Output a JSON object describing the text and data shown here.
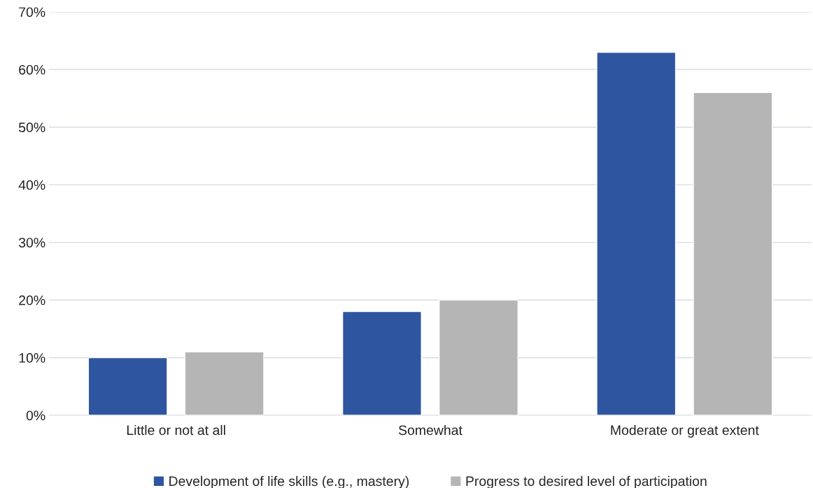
{
  "chart_data": {
    "type": "bar",
    "categories": [
      "Little or not at all",
      "Somewhat",
      "Moderate or great extent"
    ],
    "series": [
      {
        "name": "Development of life skills (e.g., mastery)",
        "color": "#2e55a0",
        "values": [
          10,
          18,
          63
        ]
      },
      {
        "name": "Progress to desired level of participation",
        "color": "#b5b5b5",
        "values": [
          11,
          20,
          56
        ]
      }
    ],
    "ylim": [
      0,
      70
    ],
    "yticks": [
      {
        "value": 0,
        "label": "0%"
      },
      {
        "value": 10,
        "label": "10%"
      },
      {
        "value": 20,
        "label": "20%"
      },
      {
        "value": 30,
        "label": "30%"
      },
      {
        "value": 40,
        "label": "40%"
      },
      {
        "value": 50,
        "label": "50%"
      },
      {
        "value": 60,
        "label": "60%"
      },
      {
        "value": 70,
        "label": "70%"
      }
    ],
    "grid": "y",
    "legend": "bottom"
  }
}
